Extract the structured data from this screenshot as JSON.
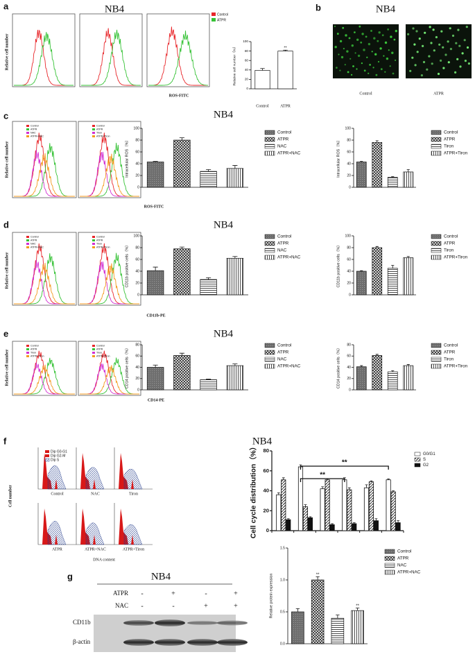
{
  "panel_labels": [
    "a",
    "b",
    "c",
    "d",
    "e",
    "f",
    "g"
  ],
  "titles": [
    "NB4",
    "NB4",
    "NB4",
    "NB4",
    "NB4",
    "NB4",
    "NB4"
  ],
  "a": {
    "legend": [
      "Control",
      "ATPR"
    ],
    "y_label": "Relative cell number",
    "x_label": "ROS-FITC"
  },
  "b": {
    "labels": [
      "Control",
      "ATPR"
    ]
  },
  "c": {
    "y_label": "Relative cell number",
    "x_label": "ROS-FITC",
    "legends": [
      [
        "Control",
        "ATPR",
        "NAC",
        "ATPR+NAC"
      ],
      [
        "Control",
        "ATPR",
        "Tiron",
        "ATPR+Tiron"
      ]
    ]
  },
  "d": {
    "y_label": "Relative cell number",
    "x_label": "CD11b-PE",
    "legends": [
      [
        "Control",
        "ATPR",
        "NAC",
        "ATPR+NAC"
      ],
      [
        "Control",
        "ATPR",
        "Tiron",
        "ATPR+Tiron"
      ]
    ]
  },
  "e": {
    "y_label": "Relative cell number",
    "x_label": "CD14-PE",
    "legends": [
      [
        "Control",
        "ATPR",
        "Tiron",
        "ATPR+Tiron"
      ],
      [
        "Control",
        "ATPR",
        "Tiron",
        "ATPR+Tiron"
      ]
    ]
  },
  "f": {
    "y_label": "Cell number",
    "x_label": "DNA content",
    "legend": [
      "Dip G0-G1",
      "Dip G2-M",
      "Dip S"
    ],
    "labels": [
      "Control",
      "NAC",
      "Tiron",
      "ATPR",
      "ATPR+NAC",
      "ATPR+Tiron"
    ]
  },
  "g": {
    "rows": [
      {
        "label": "ATPR",
        "signs": [
          "-",
          "+",
          "-",
          "+"
        ]
      },
      {
        "label": "NAC",
        "signs": [
          "-",
          "-",
          "+",
          "+"
        ]
      }
    ],
    "bands": [
      "CD11b",
      "β-actin"
    ]
  },
  "chart_data": [
    {
      "type": "bar",
      "y_label": "Relative cell number（%）",
      "categories": [
        "Control",
        "ATPR"
      ],
      "values": [
        39,
        80
      ],
      "errors": [
        4,
        2
      ],
      "ylim": [
        0,
        100
      ],
      "yticks": [
        0,
        20,
        40,
        60,
        80,
        100
      ],
      "fills": [
        "white",
        "white"
      ],
      "bar_annotations": [
        null,
        "**"
      ],
      "x_labels": true
    },
    {
      "type": "bar",
      "y_label": "Intracellular ROS（%）",
      "categories": [
        "Control",
        "ATPR",
        "NAC",
        "ATPR+NAC"
      ],
      "values": [
        43,
        80,
        27,
        32
      ],
      "errors": [
        1,
        4,
        3,
        5
      ],
      "ylim": [
        0,
        100
      ],
      "yticks": [
        0,
        20,
        40,
        60,
        80,
        100
      ],
      "fills": [
        "dark",
        "cross",
        "hlines",
        "vlines"
      ],
      "legend": true
    },
    {
      "type": "bar",
      "y_label": "Intracellular ROS（%）",
      "categories": [
        "Control",
        "ATPR",
        "Tiron",
        "ATPR+Tiron"
      ],
      "values": [
        43,
        76,
        17,
        26
      ],
      "errors": [
        1,
        3,
        1,
        4
      ],
      "ylim": [
        0,
        100
      ],
      "yticks": [
        0,
        20,
        40,
        60,
        80,
        100
      ],
      "fills": [
        "dark",
        "cross",
        "hlines",
        "vlines"
      ],
      "legend": true
    },
    {
      "type": "bar",
      "y_label": "CD11b positive cells（%）",
      "categories": [
        "Control",
        "ATPR",
        "NAC",
        "ATPR+NAC"
      ],
      "values": [
        41,
        78,
        26,
        62
      ],
      "errors": [
        6,
        3,
        3,
        3
      ],
      "ylim": [
        0,
        100
      ],
      "yticks": [
        0,
        20,
        40,
        60,
        80,
        100
      ],
      "fills": [
        "dark",
        "cross",
        "hlines",
        "vlines"
      ],
      "legend": true
    },
    {
      "type": "bar",
      "y_label": "CD11b positive cells（%）",
      "categories": [
        "Control",
        "ATPR",
        "Tiron",
        "ATPR+Tiron"
      ],
      "values": [
        40,
        80,
        45,
        63
      ],
      "errors": [
        1,
        2,
        5,
        2
      ],
      "ylim": [
        0,
        100
      ],
      "yticks": [
        0,
        20,
        40,
        60,
        80,
        100
      ],
      "fills": [
        "dark",
        "cross",
        "hlines",
        "vlines"
      ],
      "legend": true
    },
    {
      "type": "bar",
      "y_label": "CD14 positive cells（%）",
      "categories": [
        "Control",
        "ATPR",
        "NAC",
        "ATPR+NAC"
      ],
      "values": [
        40,
        61,
        18,
        43
      ],
      "errors": [
        4,
        4,
        1,
        3
      ],
      "ylim": [
        0,
        80
      ],
      "yticks": [
        0,
        20,
        40,
        60,
        80
      ],
      "fills": [
        "dark",
        "cross",
        "hlines",
        "vlines"
      ],
      "legend": true
    },
    {
      "type": "bar",
      "y_label": "CD14 positive cells（%）",
      "categories": [
        "Control",
        "ATPR",
        "Tiron",
        "ATPR+Tiron"
      ],
      "values": [
        41,
        61,
        32,
        43
      ],
      "errors": [
        2,
        2,
        2,
        2
      ],
      "ylim": [
        0,
        80
      ],
      "yticks": [
        0,
        20,
        40,
        60,
        80
      ],
      "fills": [
        "dark",
        "cross",
        "hlines",
        "vlines"
      ],
      "legend": true
    },
    {
      "type": "grouped_bar",
      "y_label": "Cell cycle distribution（%）",
      "categories": [
        null,
        null,
        null,
        null,
        null,
        null
      ],
      "series": [
        {
          "name": "G0/G1",
          "fill": "white",
          "values": [
            36,
            64,
            42,
            51,
            43,
            51
          ],
          "errors": [
            2,
            2,
            2,
            2,
            3,
            1
          ]
        },
        {
          "name": "S",
          "fill": "diag",
          "values": [
            51,
            24,
            51,
            41,
            49,
            39
          ],
          "errors": [
            2,
            2,
            1,
            2,
            1,
            1
          ]
        },
        {
          "name": "G2",
          "fill": "black",
          "values": [
            11,
            13,
            6,
            7,
            10,
            8
          ],
          "errors": [
            1,
            1,
            1,
            1,
            2,
            2
          ]
        }
      ],
      "ylim": [
        0,
        80
      ],
      "yticks": [
        0,
        20,
        40,
        60,
        80
      ],
      "brackets": [
        "**",
        "**"
      ],
      "legend": true
    },
    {
      "type": "bar",
      "y_label": "Relative protein expression",
      "categories": [
        "Control",
        "ATPR",
        "NAC",
        "ATPR+NAC"
      ],
      "values": [
        0.5,
        1.0,
        0.4,
        0.52
      ],
      "errors": [
        0.05,
        0.05,
        0.05,
        0.04
      ],
      "ylim": [
        0,
        1.5
      ],
      "yticks": [
        {
          "value": 0,
          "label": "0.0"
        },
        {
          "value": 0.5,
          "label": "0.5"
        },
        {
          "value": 1,
          "label": "1.0"
        },
        {
          "value": 1.5,
          "label": "1.5"
        }
      ],
      "fills": [
        "dark",
        "cross",
        "hlines",
        "vlines"
      ],
      "bar_annotations": [
        null,
        "**",
        null,
        "**"
      ],
      "legend": true
    }
  ]
}
